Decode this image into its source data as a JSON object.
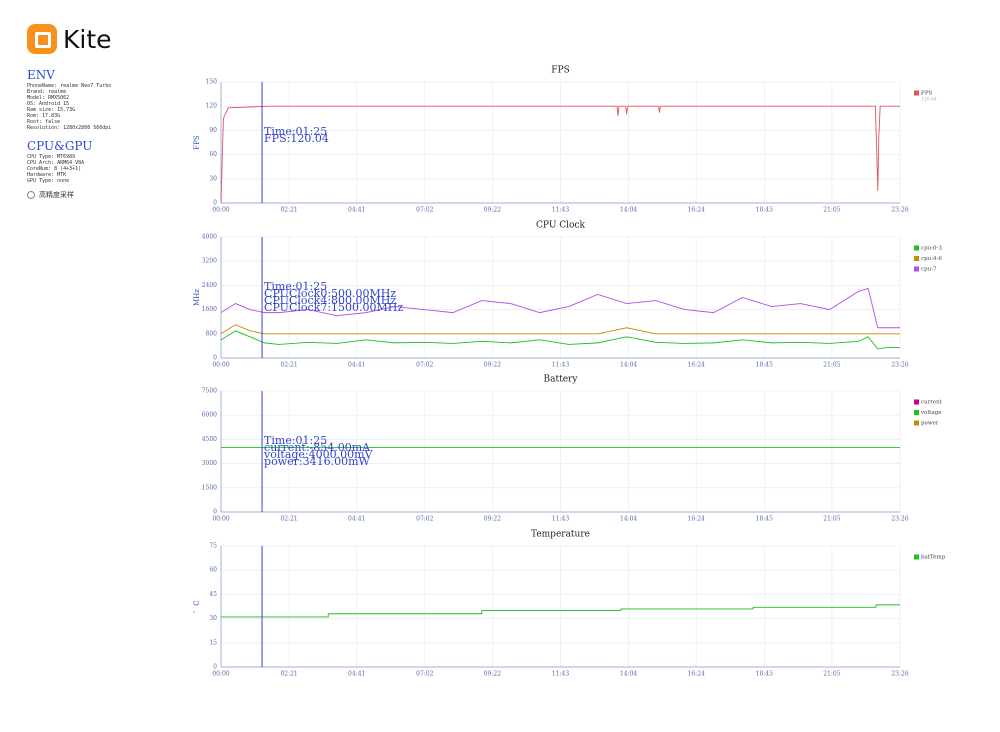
{
  "header": {
    "logo": "Kite"
  },
  "sidebar": {
    "env_title": "ENV",
    "env": [
      "PhoneName: realme Neo7 Turbo",
      "Brand: realme",
      "Model: RMX5062",
      "OS: Android 15",
      "Ram size: 15.73G",
      "Rom: 17.83G",
      "Root: false",
      "Resolution: 1280x2800 560dpi"
    ],
    "cpu_title": "CPU&GPU",
    "cpu": [
      "CPU Type: MT6989",
      "CPU Arch: ARM64_V8A",
      "CoreNum: 8 (4+3+1)",
      "Hardware: MTK",
      "GPU Type: none"
    ],
    "option": "高精度采样"
  },
  "chart_data": [
    {
      "type": "line",
      "title": "FPS",
      "y_label": "FPS",
      "grid": true,
      "cursor_x": 85,
      "annotations": [
        "Time:01:25",
        "FPS:120.04"
      ],
      "legend_value": "120.04",
      "xlim": [
        0,
        1406
      ],
      "ylim": [
        0,
        150
      ],
      "yticks": [
        0,
        30,
        60,
        90,
        120,
        150
      ],
      "xticks": [
        {
          "value": 0,
          "label": "00:00"
        },
        {
          "value": 141,
          "label": "02:21"
        },
        {
          "value": 281,
          "label": "04:41"
        },
        {
          "value": 422,
          "label": "07:02"
        },
        {
          "value": 562,
          "label": "09:22"
        },
        {
          "value": 703,
          "label": "11:43"
        },
        {
          "value": 844,
          "label": "14:04"
        },
        {
          "value": 984,
          "label": "16:24"
        },
        {
          "value": 1125,
          "label": "18:45"
        },
        {
          "value": 1265,
          "label": "21:05"
        },
        {
          "value": 1406,
          "label": "23:26"
        }
      ],
      "x": [
        0,
        5,
        15,
        100,
        400,
        820,
        822,
        824,
        838,
        840,
        842,
        906,
        908,
        910,
        1000,
        1200,
        1355,
        1358,
        1360,
        1362,
        1365,
        1406
      ],
      "series": [
        {
          "name": "FPS",
          "color": "#e0555f",
          "values": [
            0,
            105,
            118,
            120,
            120,
            120,
            108,
            120,
            120,
            110,
            120,
            120,
            112,
            120,
            120,
            120,
            120,
            60,
            15,
            80,
            120,
            120
          ]
        }
      ]
    },
    {
      "type": "line",
      "title": "CPU Clock",
      "y_label": "MHz",
      "grid": true,
      "cursor_x": 85,
      "annotations": [
        "Time:01:25",
        "CPUClock0:500.00MHz",
        "CPUClock4:800.00MHz",
        "CPUClock7:1500.00MHz"
      ],
      "xlim": [
        0,
        1406
      ],
      "ylim": [
        0,
        4000
      ],
      "yticks": [
        0,
        800,
        1600,
        2400,
        3200,
        4000
      ],
      "xticks": [
        {
          "value": 0,
          "label": "00:00"
        },
        {
          "value": 141,
          "label": "02:21"
        },
        {
          "value": 281,
          "label": "04:41"
        },
        {
          "value": 422,
          "label": "07:02"
        },
        {
          "value": 562,
          "label": "09:22"
        },
        {
          "value": 703,
          "label": "11:43"
        },
        {
          "value": 844,
          "label": "14:04"
        },
        {
          "value": 984,
          "label": "16:24"
        },
        {
          "value": 1125,
          "label": "18:45"
        },
        {
          "value": 1265,
          "label": "21:05"
        },
        {
          "value": 1406,
          "label": "23:26"
        }
      ],
      "x": [
        0,
        30,
        60,
        90,
        120,
        180,
        240,
        300,
        360,
        420,
        480,
        540,
        600,
        660,
        720,
        780,
        840,
        900,
        960,
        1020,
        1080,
        1140,
        1200,
        1260,
        1320,
        1340,
        1360,
        1380,
        1406
      ],
      "series": [
        {
          "name": "cpu:0-3",
          "color": "#1fbf1f",
          "values": [
            600,
            900,
            700,
            500,
            450,
            520,
            480,
            600,
            500,
            520,
            480,
            550,
            500,
            600,
            450,
            500,
            700,
            520,
            480,
            500,
            600,
            500,
            520,
            480,
            550,
            700,
            300,
            350,
            350
          ]
        },
        {
          "name": "cpu:4-6",
          "color": "#cc8a00",
          "values": [
            800,
            1100,
            900,
            800,
            800,
            800,
            800,
            800,
            800,
            800,
            800,
            800,
            800,
            800,
            800,
            800,
            1000,
            800,
            800,
            800,
            800,
            800,
            800,
            800,
            800,
            800,
            800,
            800,
            800
          ]
        },
        {
          "name": "cpu:7",
          "color": "#b44ee6",
          "values": [
            1500,
            1800,
            1600,
            1500,
            1500,
            1600,
            1400,
            1500,
            1700,
            1600,
            1500,
            1900,
            1800,
            1500,
            1700,
            2100,
            1800,
            1900,
            1600,
            1500,
            2000,
            1700,
            1800,
            1600,
            2200,
            2300,
            1000,
            1000,
            1000
          ]
        }
      ]
    },
    {
      "type": "line",
      "title": "Battery",
      "grid": true,
      "cursor_x": 85,
      "annotations": [
        "Time:01:25",
        "current:-854.00mA",
        "voltage:4000.00mV",
        "power:3416.00mW"
      ],
      "xlim": [
        0,
        1406
      ],
      "ylim": [
        0,
        7500
      ],
      "yticks": [
        0,
        1500,
        3000,
        4500,
        6000,
        7500
      ],
      "xticks": [
        {
          "value": 0,
          "label": "00:00"
        },
        {
          "value": 141,
          "label": "02:21"
        },
        {
          "value": 281,
          "label": "04:41"
        },
        {
          "value": 422,
          "label": "07:02"
        },
        {
          "value": 562,
          "label": "09:22"
        },
        {
          "value": 703,
          "label": "11:43"
        },
        {
          "value": 844,
          "label": "14:04"
        },
        {
          "value": 984,
          "label": "16:24"
        },
        {
          "value": 1125,
          "label": "18:45"
        },
        {
          "value": 1265,
          "label": "21:05"
        },
        {
          "value": 1406,
          "label": "23:26"
        }
      ],
      "x": [
        0,
        1406
      ],
      "series": [
        {
          "name": "current",
          "color": "#cc0088",
          "values": [
            null,
            null
          ]
        },
        {
          "name": "voltage",
          "color": "#1fbf1f",
          "values": [
            4000,
            4000
          ]
        },
        {
          "name": "power",
          "color": "#cc8a00",
          "values": [
            null,
            null
          ]
        }
      ]
    },
    {
      "type": "line",
      "title": "Temperature",
      "y_label": "゜C",
      "grid": true,
      "cursor_x": 85,
      "xlim": [
        0,
        1406
      ],
      "ylim": [
        0,
        75
      ],
      "yticks": [
        0,
        15,
        30,
        45,
        60,
        75
      ],
      "xticks": [
        {
          "value": 0,
          "label": "00:00"
        },
        {
          "value": 141,
          "label": "02:21"
        },
        {
          "value": 281,
          "label": "04:41"
        },
        {
          "value": 422,
          "label": "07:02"
        },
        {
          "value": 562,
          "label": "09:22"
        },
        {
          "value": 703,
          "label": "11:43"
        },
        {
          "value": 844,
          "label": "14:04"
        },
        {
          "value": 984,
          "label": "16:24"
        },
        {
          "value": 1125,
          "label": "18:45"
        },
        {
          "value": 1265,
          "label": "21:05"
        },
        {
          "value": 1406,
          "label": "23:26"
        }
      ],
      "x": [
        0,
        222,
        222,
        540,
        540,
        828,
        828,
        1102,
        1102,
        1356,
        1356,
        1406
      ],
      "series": [
        {
          "name": "batTemp",
          "color": "#1fbf1f",
          "values": [
            31,
            31,
            33,
            33,
            35,
            35,
            36,
            36,
            37,
            37,
            38.5,
            38.5
          ]
        }
      ]
    }
  ]
}
